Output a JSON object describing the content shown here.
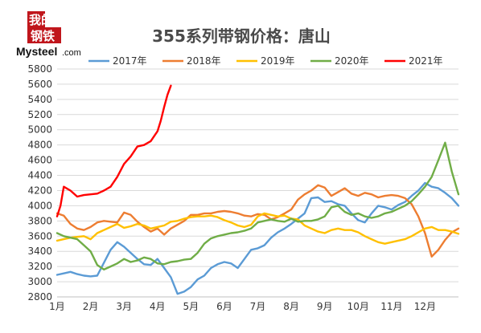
{
  "logo": {
    "cn_top": "我的",
    "cn_bottom": "钢铁",
    "en": "Mysteel",
    "com": ".com"
  },
  "chart_data": {
    "type": "line",
    "title": "355系列带钢价格：唐山",
    "xlabel": "",
    "ylabel": "",
    "x_unit": "month",
    "x_ticks": [
      "1月",
      "2月",
      "3月",
      "4月",
      "5月",
      "6月",
      "7月",
      "8月",
      "9月",
      "10月",
      "11月",
      "12月"
    ],
    "ylim": [
      2800,
      5800
    ],
    "y_ticks": [
      2800,
      3000,
      3200,
      3400,
      3600,
      3800,
      4000,
      4200,
      4400,
      4600,
      4800,
      5000,
      5200,
      5400,
      5600,
      5800
    ],
    "grid": true,
    "legend_position": "top",
    "series": [
      {
        "name": "2017年",
        "color": "#5b9bd5",
        "points": [
          [
            1,
            3090
          ],
          [
            1.2,
            3110
          ],
          [
            1.4,
            3130
          ],
          [
            1.6,
            3100
          ],
          [
            1.8,
            3080
          ],
          [
            2,
            3070
          ],
          [
            2.2,
            3080
          ],
          [
            2.4,
            3250
          ],
          [
            2.6,
            3420
          ],
          [
            2.8,
            3520
          ],
          [
            3,
            3460
          ],
          [
            3.2,
            3380
          ],
          [
            3.4,
            3300
          ],
          [
            3.6,
            3230
          ],
          [
            3.8,
            3220
          ],
          [
            4,
            3300
          ],
          [
            4.2,
            3180
          ],
          [
            4.4,
            3060
          ],
          [
            4.6,
            2840
          ],
          [
            4.8,
            2870
          ],
          [
            5,
            2930
          ],
          [
            5.2,
            3030
          ],
          [
            5.4,
            3080
          ],
          [
            5.6,
            3180
          ],
          [
            5.8,
            3230
          ],
          [
            6,
            3260
          ],
          [
            6.2,
            3240
          ],
          [
            6.4,
            3180
          ],
          [
            6.6,
            3300
          ],
          [
            6.8,
            3420
          ],
          [
            7,
            3440
          ],
          [
            7.2,
            3480
          ],
          [
            7.4,
            3580
          ],
          [
            7.6,
            3650
          ],
          [
            7.8,
            3700
          ],
          [
            8,
            3760
          ],
          [
            8.2,
            3830
          ],
          [
            8.4,
            3900
          ],
          [
            8.6,
            4100
          ],
          [
            8.8,
            4110
          ],
          [
            9,
            4050
          ],
          [
            9.2,
            4060
          ],
          [
            9.4,
            4020
          ],
          [
            9.6,
            4000
          ],
          [
            9.8,
            3900
          ],
          [
            10,
            3810
          ],
          [
            10.2,
            3780
          ],
          [
            10.4,
            3900
          ],
          [
            10.6,
            4000
          ],
          [
            10.8,
            3980
          ],
          [
            11,
            3950
          ],
          [
            11.2,
            4010
          ],
          [
            11.4,
            4050
          ],
          [
            11.6,
            4130
          ],
          [
            11.8,
            4200
          ],
          [
            12,
            4300
          ],
          [
            12.2,
            4250
          ],
          [
            12.4,
            4230
          ],
          [
            12.6,
            4170
          ],
          [
            12.8,
            4100
          ],
          [
            13,
            4000
          ]
        ]
      },
      {
        "name": "2018年",
        "color": "#ed7d31",
        "points": [
          [
            1,
            3900
          ],
          [
            1.2,
            3870
          ],
          [
            1.4,
            3760
          ],
          [
            1.6,
            3700
          ],
          [
            1.8,
            3680
          ],
          [
            2,
            3720
          ],
          [
            2.2,
            3780
          ],
          [
            2.4,
            3800
          ],
          [
            2.6,
            3790
          ],
          [
            2.8,
            3780
          ],
          [
            3,
            3910
          ],
          [
            3.2,
            3880
          ],
          [
            3.4,
            3790
          ],
          [
            3.6,
            3720
          ],
          [
            3.8,
            3660
          ],
          [
            4,
            3700
          ],
          [
            4.2,
            3620
          ],
          [
            4.4,
            3700
          ],
          [
            4.6,
            3750
          ],
          [
            4.8,
            3800
          ],
          [
            5,
            3880
          ],
          [
            5.2,
            3880
          ],
          [
            5.4,
            3900
          ],
          [
            5.6,
            3900
          ],
          [
            5.8,
            3920
          ],
          [
            6,
            3930
          ],
          [
            6.2,
            3920
          ],
          [
            6.4,
            3900
          ],
          [
            6.6,
            3870
          ],
          [
            6.8,
            3860
          ],
          [
            7,
            3890
          ],
          [
            7.2,
            3880
          ],
          [
            7.4,
            3820
          ],
          [
            7.6,
            3850
          ],
          [
            7.8,
            3900
          ],
          [
            8,
            3950
          ],
          [
            8.2,
            4080
          ],
          [
            8.4,
            4150
          ],
          [
            8.6,
            4200
          ],
          [
            8.8,
            4270
          ],
          [
            9,
            4240
          ],
          [
            9.2,
            4130
          ],
          [
            9.4,
            4180
          ],
          [
            9.6,
            4230
          ],
          [
            9.8,
            4160
          ],
          [
            10,
            4130
          ],
          [
            10.2,
            4170
          ],
          [
            10.4,
            4150
          ],
          [
            10.6,
            4110
          ],
          [
            10.8,
            4130
          ],
          [
            11,
            4140
          ],
          [
            11.2,
            4130
          ],
          [
            11.4,
            4100
          ],
          [
            11.6,
            4020
          ],
          [
            11.8,
            3860
          ],
          [
            12,
            3640
          ],
          [
            12.2,
            3330
          ],
          [
            12.4,
            3420
          ],
          [
            12.6,
            3550
          ],
          [
            12.8,
            3650
          ],
          [
            13,
            3700
          ]
        ]
      },
      {
        "name": "2019年",
        "color": "#ffc000",
        "points": [
          [
            1,
            3540
          ],
          [
            1.2,
            3560
          ],
          [
            1.4,
            3580
          ],
          [
            1.6,
            3590
          ],
          [
            1.8,
            3600
          ],
          [
            2,
            3560
          ],
          [
            2.2,
            3640
          ],
          [
            2.4,
            3680
          ],
          [
            2.6,
            3720
          ],
          [
            2.8,
            3760
          ],
          [
            3,
            3710
          ],
          [
            3.2,
            3730
          ],
          [
            3.4,
            3760
          ],
          [
            3.6,
            3740
          ],
          [
            3.8,
            3700
          ],
          [
            4,
            3720
          ],
          [
            4.2,
            3740
          ],
          [
            4.4,
            3790
          ],
          [
            4.6,
            3800
          ],
          [
            4.8,
            3830
          ],
          [
            5,
            3850
          ],
          [
            5.2,
            3860
          ],
          [
            5.4,
            3860
          ],
          [
            5.6,
            3870
          ],
          [
            5.8,
            3850
          ],
          [
            6,
            3810
          ],
          [
            6.2,
            3780
          ],
          [
            6.4,
            3740
          ],
          [
            6.6,
            3720
          ],
          [
            6.8,
            3750
          ],
          [
            7,
            3860
          ],
          [
            7.2,
            3900
          ],
          [
            7.4,
            3880
          ],
          [
            7.6,
            3860
          ],
          [
            7.8,
            3870
          ],
          [
            8,
            3830
          ],
          [
            8.2,
            3820
          ],
          [
            8.4,
            3740
          ],
          [
            8.6,
            3700
          ],
          [
            8.8,
            3660
          ],
          [
            9,
            3640
          ],
          [
            9.2,
            3680
          ],
          [
            9.4,
            3700
          ],
          [
            9.6,
            3680
          ],
          [
            9.8,
            3680
          ],
          [
            10,
            3650
          ],
          [
            10.2,
            3600
          ],
          [
            10.4,
            3560
          ],
          [
            10.6,
            3520
          ],
          [
            10.8,
            3500
          ],
          [
            11,
            3520
          ],
          [
            11.2,
            3540
          ],
          [
            11.4,
            3560
          ],
          [
            11.6,
            3600
          ],
          [
            11.8,
            3650
          ],
          [
            12,
            3700
          ],
          [
            12.2,
            3720
          ],
          [
            12.4,
            3680
          ],
          [
            12.6,
            3680
          ],
          [
            12.8,
            3660
          ],
          [
            13,
            3630
          ]
        ]
      },
      {
        "name": "2020年",
        "color": "#70ad47",
        "points": [
          [
            1,
            3640
          ],
          [
            1.2,
            3600
          ],
          [
            1.4,
            3580
          ],
          [
            1.6,
            3560
          ],
          [
            1.8,
            3480
          ],
          [
            2,
            3400
          ],
          [
            2.2,
            3220
          ],
          [
            2.4,
            3160
          ],
          [
            2.6,
            3200
          ],
          [
            2.8,
            3240
          ],
          [
            3,
            3300
          ],
          [
            3.2,
            3260
          ],
          [
            3.4,
            3280
          ],
          [
            3.6,
            3320
          ],
          [
            3.8,
            3300
          ],
          [
            4,
            3240
          ],
          [
            4.2,
            3230
          ],
          [
            4.4,
            3260
          ],
          [
            4.6,
            3270
          ],
          [
            4.8,
            3290
          ],
          [
            5,
            3300
          ],
          [
            5.2,
            3380
          ],
          [
            5.4,
            3500
          ],
          [
            5.6,
            3570
          ],
          [
            5.8,
            3600
          ],
          [
            6,
            3620
          ],
          [
            6.2,
            3640
          ],
          [
            6.4,
            3650
          ],
          [
            6.6,
            3670
          ],
          [
            6.8,
            3700
          ],
          [
            7,
            3780
          ],
          [
            7.2,
            3800
          ],
          [
            7.4,
            3820
          ],
          [
            7.6,
            3800
          ],
          [
            7.8,
            3790
          ],
          [
            8,
            3830
          ],
          [
            8.2,
            3790
          ],
          [
            8.4,
            3800
          ],
          [
            8.6,
            3800
          ],
          [
            8.8,
            3820
          ],
          [
            9,
            3860
          ],
          [
            9.2,
            3980
          ],
          [
            9.4,
            4000
          ],
          [
            9.6,
            3920
          ],
          [
            9.8,
            3880
          ],
          [
            10,
            3900
          ],
          [
            10.2,
            3860
          ],
          [
            10.4,
            3840
          ],
          [
            10.6,
            3860
          ],
          [
            10.8,
            3900
          ],
          [
            11,
            3920
          ],
          [
            11.2,
            3960
          ],
          [
            11.4,
            4000
          ],
          [
            11.6,
            4060
          ],
          [
            11.8,
            4150
          ],
          [
            12,
            4250
          ],
          [
            12.2,
            4380
          ],
          [
            12.4,
            4600
          ],
          [
            12.6,
            4830
          ],
          [
            12.8,
            4450
          ],
          [
            13,
            4150
          ]
        ]
      },
      {
        "name": "2021年",
        "color": "#ff0000",
        "points": [
          [
            1,
            3860
          ],
          [
            1.1,
            4000
          ],
          [
            1.2,
            4250
          ],
          [
            1.4,
            4200
          ],
          [
            1.6,
            4120
          ],
          [
            1.8,
            4140
          ],
          [
            2,
            4150
          ],
          [
            2.2,
            4160
          ],
          [
            2.4,
            4200
          ],
          [
            2.6,
            4250
          ],
          [
            2.8,
            4380
          ],
          [
            3,
            4550
          ],
          [
            3.2,
            4650
          ],
          [
            3.4,
            4780
          ],
          [
            3.6,
            4800
          ],
          [
            3.8,
            4850
          ],
          [
            4,
            4980
          ],
          [
            4.1,
            5120
          ],
          [
            4.2,
            5300
          ],
          [
            4.3,
            5460
          ],
          [
            4.4,
            5580
          ]
        ]
      }
    ]
  }
}
